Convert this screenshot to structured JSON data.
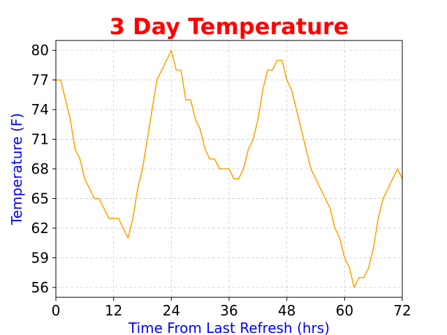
{
  "chart_data": {
    "type": "line",
    "title": "3 Day Temperature",
    "xlabel": "Time From Last Refresh (hrs)",
    "ylabel": "Temperature (F)",
    "xlim": [
      0,
      72
    ],
    "ylim": [
      55,
      81
    ],
    "xticks": [
      0,
      12,
      24,
      36,
      48,
      60,
      72
    ],
    "yticks": [
      56,
      59,
      62,
      65,
      68,
      71,
      74,
      77,
      80
    ],
    "grid": true,
    "colors": {
      "title": "#ff0000",
      "axis_labels": "#0000ff",
      "line": "#ffa500"
    },
    "series": [
      {
        "x": [
          0,
          1,
          2,
          3,
          4,
          5,
          6,
          7,
          8,
          9,
          10,
          11,
          12,
          13,
          14,
          15,
          16,
          17,
          18,
          19,
          20,
          21,
          22,
          23,
          24,
          25,
          26,
          27,
          28,
          29,
          30,
          31,
          32,
          33,
          34,
          35,
          36,
          37,
          38,
          39,
          40,
          41,
          42,
          43,
          44,
          45,
          46,
          47,
          48,
          49,
          50,
          51,
          52,
          53,
          54,
          55,
          56,
          57,
          58,
          59,
          60,
          61,
          62,
          63,
          64,
          65,
          66,
          67,
          68,
          69,
          70,
          71,
          72
        ],
        "values": [
          77,
          77,
          75,
          73,
          70,
          69,
          67,
          66,
          65,
          65,
          64,
          63,
          63,
          63,
          62,
          61,
          63,
          66,
          68,
          71,
          74,
          77,
          78,
          79,
          80,
          78,
          78,
          75,
          75,
          73,
          72,
          70,
          69,
          69,
          68,
          68,
          68,
          67,
          67,
          68,
          70,
          71,
          73,
          76,
          78,
          78,
          79,
          79,
          77,
          76,
          74,
          72,
          70,
          68,
          67,
          66,
          65,
          64,
          62,
          61,
          59,
          58,
          56,
          57,
          57,
          58,
          60,
          63,
          65,
          66,
          67,
          68,
          67
        ]
      }
    ]
  }
}
